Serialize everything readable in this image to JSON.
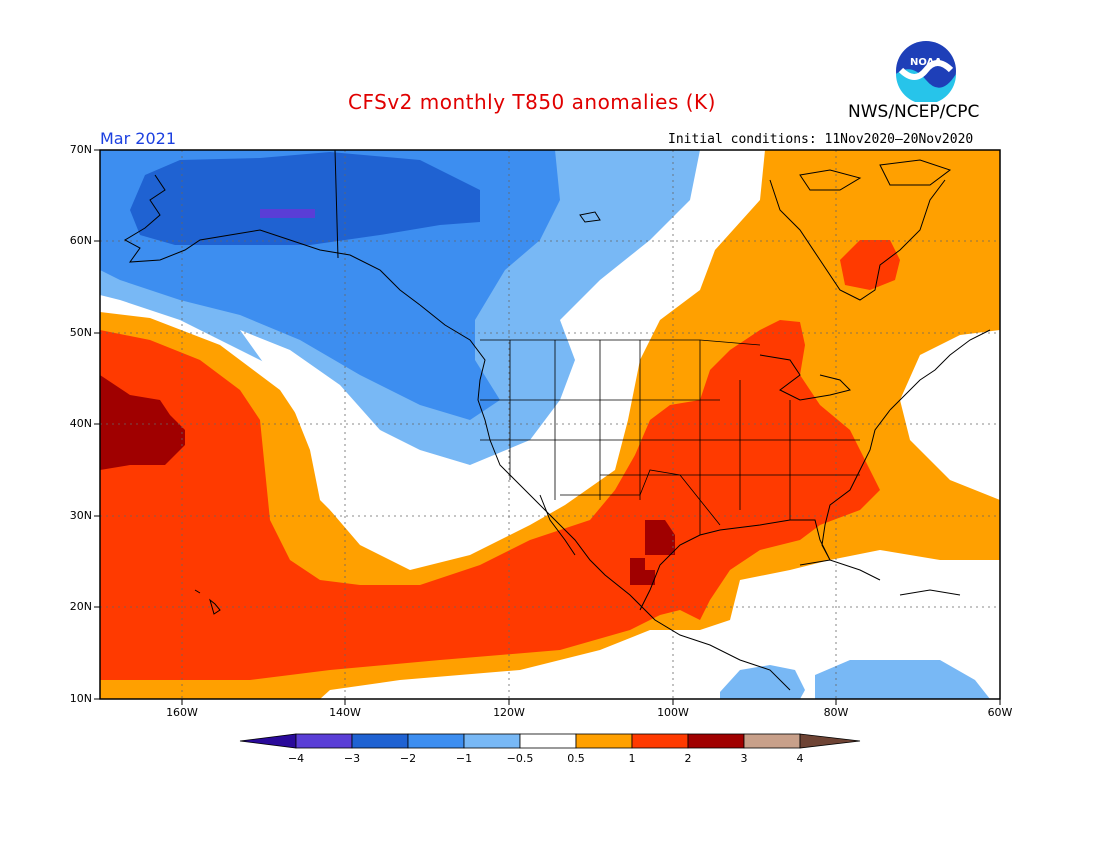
{
  "header": {
    "title": "CFSv2 monthly T850 anomalies (K)",
    "org": "NWS/NCEP/CPC",
    "month": "Mar 2021",
    "initial_conditions": "Initial conditions: 11Nov2020–20Nov2020",
    "logo_text": "NOAA"
  },
  "axes": {
    "lat_labels": [
      "70N",
      "60N",
      "50N",
      "40N",
      "30N",
      "20N",
      "10N"
    ],
    "lon_labels": [
      "160W",
      "140W",
      "120W",
      "100W",
      "80W",
      "60W"
    ]
  },
  "colorbar": {
    "labels": [
      "−4",
      "−3",
      "−2",
      "−1",
      "−0.5",
      "0.5",
      "1",
      "2",
      "3",
      "4"
    ],
    "colors": [
      "#2a0a9a",
      "#5a3ed6",
      "#1f62d2",
      "#3d8ef0",
      "#78b8f5",
      "#ffffff",
      "#ffa000",
      "#ff3a00",
      "#a00000",
      "#c8a08a",
      "#6e4334"
    ]
  },
  "colors": {
    "title": "#e00000",
    "month": "#1c40e0"
  }
}
